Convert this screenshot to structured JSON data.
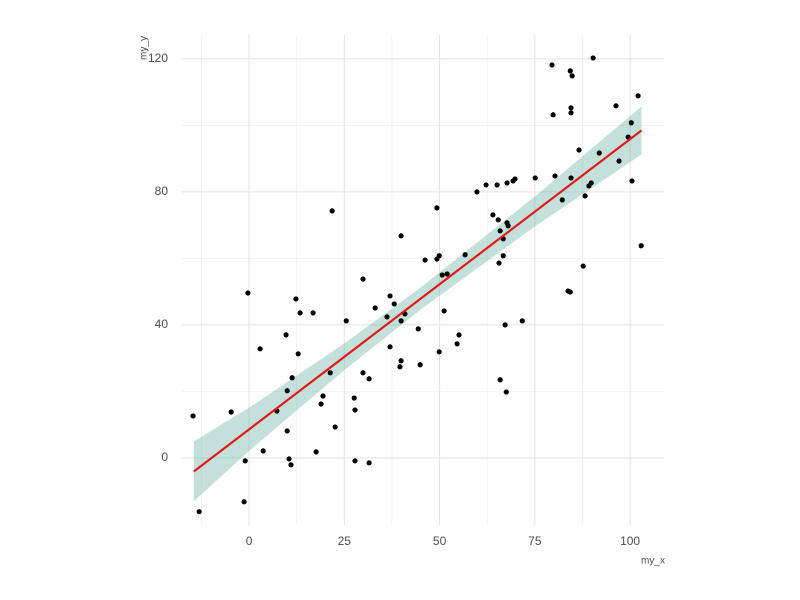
{
  "chart_data": {
    "type": "scatter",
    "x_label": "my_x",
    "y_label": "my_y",
    "xlim": [
      -17.6,
      108.9
    ],
    "ylim": [
      -20.2,
      127.2
    ],
    "xticks": [
      0,
      25,
      50,
      75,
      100
    ],
    "yticks": [
      0,
      40,
      80,
      120
    ],
    "x_minor_ticks": [
      -12.5,
      12.5,
      37.5,
      62.5,
      87.5
    ],
    "y_minor_ticks": [
      20,
      60,
      100
    ],
    "grid": true,
    "point_color": "#000000",
    "x": [
      -14.7,
      -13.1,
      -4.7,
      -1.0,
      -1.3,
      -0.3,
      2.9,
      3.7,
      7.3,
      9.7,
      10.0,
      10.0,
      10.5,
      11.0,
      11.3,
      12.3,
      12.9,
      13.4,
      16.8,
      17.6,
      18.9,
      19.4,
      21.3,
      21.8,
      22.6,
      25.5,
      27.6,
      27.8,
      27.8,
      29.9,
      29.9,
      31.5,
      31.5,
      33.1,
      36.2,
      37.0,
      37.0,
      38.1,
      39.6,
      39.9,
      39.9,
      39.9,
      40.9,
      44.4,
      44.9,
      46.2,
      49.3,
      49.3,
      49.9,
      49.9,
      50.7,
      51.2,
      52.0,
      54.6,
      55.1,
      56.7,
      59.8,
      62.2,
      64.0,
      65.1,
      65.4,
      65.9,
      65.6,
      65.9,
      66.7,
      66.7,
      67.2,
      67.7,
      67.5,
      67.7,
      68.0,
      69.3,
      69.8,
      71.7,
      75.1,
      79.5,
      79.8,
      80.3,
      82.2,
      83.7,
      84.3,
      84.3,
      84.5,
      84.5,
      84.8,
      84.5,
      86.6,
      87.7,
      88.2,
      89.2,
      89.8,
      90.3,
      91.9,
      96.3,
      97.1,
      99.5,
      100.3,
      100.5,
      102.1,
      102.9
    ],
    "y": [
      12.6,
      -16.2,
      13.8,
      -0.9,
      -13.2,
      49.6,
      32.8,
      2.1,
      14.1,
      37.0,
      20.2,
      8.1,
      -0.3,
      -2.1,
      24.1,
      47.8,
      31.3,
      43.6,
      43.6,
      1.8,
      16.2,
      18.6,
      25.6,
      74.3,
      9.3,
      41.2,
      18.0,
      14.4,
      -0.9,
      53.8,
      25.6,
      23.8,
      -1.5,
      45.1,
      42.4,
      48.7,
      33.4,
      46.3,
      27.4,
      66.8,
      29.2,
      41.2,
      43.3,
      38.8,
      28.0,
      59.5,
      75.2,
      59.8,
      60.8,
      31.9,
      55.0,
      44.2,
      55.3,
      34.3,
      37.0,
      61.1,
      80.0,
      82.1,
      73.1,
      82.1,
      71.6,
      68.3,
      58.6,
      23.5,
      65.9,
      60.8,
      40.0,
      82.7,
      19.8,
      70.7,
      69.8,
      83.3,
      83.9,
      41.2,
      84.2,
      118.2,
      103.2,
      84.8,
      77.6,
      50.2,
      49.9,
      116.4,
      105.3,
      103.8,
      114.9,
      84.2,
      92.6,
      57.7,
      78.8,
      81.8,
      82.7,
      120.3,
      91.7,
      105.9,
      89.3,
      96.5,
      100.8,
      83.3,
      108.9,
      63.8
    ],
    "fit": {
      "color": "#e31a1c",
      "x": [
        -14.5,
        103
      ],
      "y": [
        -4.1,
        98.5
      ]
    },
    "band": {
      "color": "#69b3a2",
      "x": [
        -14.5,
        0,
        25,
        45,
        75,
        103
      ],
      "upper": [
        4.9,
        15.1,
        34.4,
        51.2,
        78.6,
        105.7
      ],
      "lower": [
        -13.1,
        2.1,
        26.4,
        44.6,
        69.6,
        91.3
      ]
    }
  }
}
